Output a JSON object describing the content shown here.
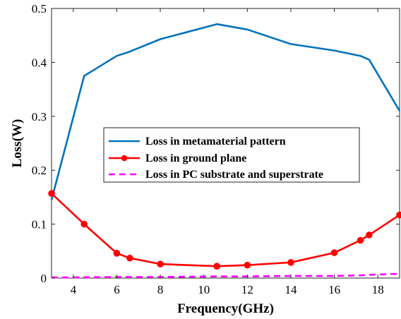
{
  "chart_data": {
    "type": "line",
    "title": "",
    "xlabel": "Frequency(GHz)",
    "ylabel": "Loss(W)",
    "xlim": [
      3,
      19
    ],
    "ylim": [
      0,
      0.5
    ],
    "xticks": [
      4,
      6,
      8,
      10,
      12,
      14,
      16,
      18
    ],
    "yticks": [
      0,
      0.1,
      0.2,
      0.3,
      0.4,
      0.5
    ],
    "xtick_labels": [
      "4",
      "6",
      "8",
      "10",
      "12",
      "14",
      "16",
      "18"
    ],
    "ytick_labels": [
      "0",
      "0.1",
      "0.2",
      "0.3",
      "0.4",
      "0.5"
    ],
    "grid": false,
    "legend_position": "center",
    "series": [
      {
        "name": "Loss in metamaterial pattern",
        "color": "#0072BD",
        "style": "solid",
        "marker": "none",
        "x": [
          3.0,
          4.5,
          6.0,
          6.6,
          8.0,
          10.6,
          12.0,
          14.0,
          16.0,
          17.2,
          17.6,
          19.0
        ],
        "y": [
          0.145,
          0.375,
          0.412,
          0.42,
          0.443,
          0.471,
          0.461,
          0.434,
          0.422,
          0.412,
          0.405,
          0.31
        ]
      },
      {
        "name": "Loss in ground plane",
        "color": "#FF0000",
        "style": "solid",
        "marker": "circle",
        "x": [
          3.0,
          4.5,
          6.0,
          6.6,
          8.0,
          10.6,
          12.0,
          14.0,
          16.0,
          17.2,
          17.6,
          19.0
        ],
        "y": [
          0.157,
          0.1,
          0.046,
          0.037,
          0.026,
          0.022,
          0.024,
          0.029,
          0.047,
          0.07,
          0.08,
          0.117
        ]
      },
      {
        "name": "Loss in PC substrate and superstrate",
        "color": "#FF00FF",
        "style": "dashed",
        "marker": "none",
        "x": [
          3.0,
          4.5,
          6.0,
          6.6,
          8.0,
          10.6,
          12.0,
          14.0,
          16.0,
          17.2,
          17.6,
          19.0
        ],
        "y": [
          0.001,
          0.0015,
          0.002,
          0.002,
          0.002,
          0.003,
          0.003,
          0.004,
          0.004,
          0.005,
          0.006,
          0.008
        ]
      }
    ]
  }
}
